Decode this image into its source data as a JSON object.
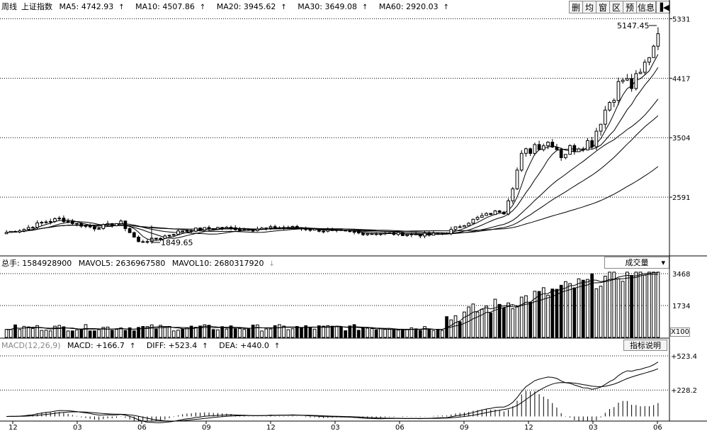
{
  "toolbar": {
    "buttons": [
      "删",
      "均",
      "窗",
      "区",
      "预",
      "信息"
    ],
    "back_icon": "back-to-start-icon"
  },
  "price_header": {
    "period": "周线",
    "name": "上证指数",
    "ma5": "MA5: 4742.93",
    "ma10": "MA10: 4507.86",
    "ma20": "MA20: 3945.62",
    "ma30": "MA30: 3649.08",
    "ma60": "MA60: 2920.03"
  },
  "volume_header": {
    "total": "总手: 1584928900",
    "mavol5": "MAVOL5: 2636967580",
    "mavol10": "MAVOL10: 2680317920",
    "dropdown": "成交量",
    "multiplier": "X100"
  },
  "macd_header": {
    "name": "MACD(12,26,9)",
    "macd": "MACD: +166.7",
    "diff": "DIFF: +523.4",
    "dea": "DEA: +440.0",
    "explain_button": "指标说明"
  },
  "chart_data": [
    {
      "type": "candlestick",
      "title": "上证指数",
      "ylim": [
        1700,
        5400
      ],
      "y_ticks": [
        "5331",
        "4417",
        "3504",
        "2591"
      ],
      "annotations": {
        "high": "5147.45",
        "low": "1849.65"
      },
      "series": [
        {
          "name": "MA5",
          "last": 4742.93
        },
        {
          "name": "MA10",
          "last": 4507.86
        },
        {
          "name": "MA20",
          "last": 3945.62
        },
        {
          "name": "MA30",
          "last": 3649.08
        },
        {
          "name": "MA60",
          "last": 2920.03
        }
      ],
      "keypoints": [
        [
          0,
          2050
        ],
        [
          4,
          2100
        ],
        [
          8,
          2200
        ],
        [
          12,
          2260
        ],
        [
          16,
          2180
        ],
        [
          20,
          2120
        ],
        [
          26,
          2200
        ],
        [
          30,
          1900
        ],
        [
          34,
          1950
        ],
        [
          40,
          2080
        ],
        [
          48,
          2120
        ],
        [
          56,
          2100
        ],
        [
          64,
          2130
        ],
        [
          72,
          2080
        ],
        [
          80,
          2040
        ],
        [
          88,
          2030
        ],
        [
          96,
          2010
        ],
        [
          100,
          2050
        ],
        [
          104,
          2180
        ],
        [
          108,
          2300
        ],
        [
          113,
          2400
        ],
        [
          117,
          3200
        ],
        [
          120,
          3400
        ],
        [
          124,
          3450
        ],
        [
          126,
          3250
        ],
        [
          130,
          3400
        ],
        [
          133,
          3450
        ],
        [
          135,
          3800
        ],
        [
          138,
          4200
        ],
        [
          140,
          4400
        ],
        [
          142,
          4300
        ],
        [
          144,
          4450
        ],
        [
          146,
          4800
        ],
        [
          148,
          5100
        ]
      ]
    },
    {
      "type": "bar",
      "title": "成交量",
      "y_ticks": [
        "3468",
        "1734"
      ],
      "series": [
        {
          "name": "MAVOL5",
          "last": 2636967580
        },
        {
          "name": "MAVOL10",
          "last": 2680317920
        }
      ]
    },
    {
      "type": "line",
      "title": "MACD(12,26,9)",
      "y_ticks": [
        "+523.4",
        "+228.2"
      ],
      "series": [
        {
          "name": "DIFF",
          "last": 523.4
        },
        {
          "name": "DEA",
          "last": 440.0
        },
        {
          "name": "MACD",
          "last": 166.7
        }
      ]
    }
  ],
  "x_ticks": [
    "12",
    "03",
    "06",
    "09",
    "12",
    "03",
    "06",
    "09",
    "12",
    "03",
    "06"
  ],
  "colors": {
    "up": "#000000",
    "down": "#000000",
    "grid": "#000000",
    "bg": "#ffffff"
  }
}
